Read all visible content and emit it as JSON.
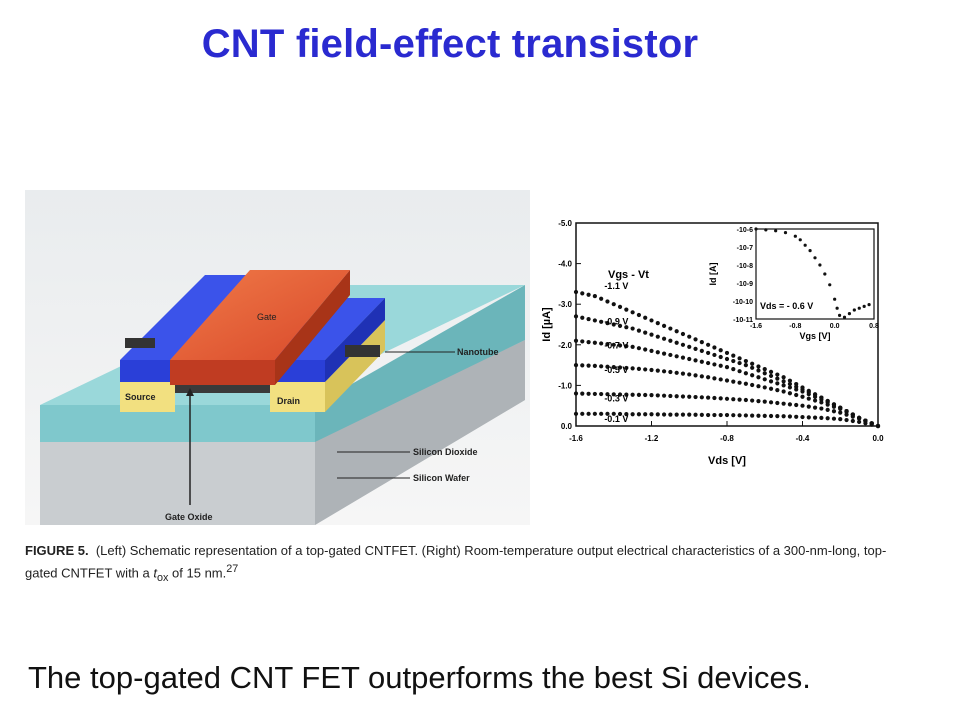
{
  "slide": {
    "title": "CNT field-effect transistor",
    "tagline": "The top-gated CNT FET outperforms the best Si devices."
  },
  "schematic": {
    "labels": {
      "gate": "Gate",
      "source": "Source",
      "drain": "Drain",
      "nanotube": "Nanotube",
      "silicon_dioxide": "Silicon Dioxide",
      "silicon_wafer": "Silicon Wafer",
      "gate_oxide": "Gate Oxide"
    },
    "colors": {
      "gate": "#e8603a",
      "electrode_blue": "#2a3fd8",
      "contact_yellow": "#f2e080",
      "oxide": "#8fd3d6",
      "wafer": "#c9cdd0"
    }
  },
  "caption": {
    "figure_label": "FIGURE 5.",
    "text_part1": "(Left) Schematic representation of a top-gated CNTFET. (Right) Room-temperature output electrical characteristics of a 300-nm-long, top-gated CNTFET with a ",
    "tox": "t",
    "tox_sub": "ox",
    "text_part2": " of 15 nm.",
    "ref": "27"
  },
  "chart_data": [
    {
      "type": "scatter",
      "title": "",
      "xlabel": "Vds [V]",
      "ylabel": "Id [µA]",
      "xlim": [
        -1.6,
        0.0
      ],
      "ylim": [
        0.0,
        -5.0
      ],
      "x_ticks": [
        "-1.6",
        "-1.2",
        "-0.8",
        "-0.4",
        "0.0"
      ],
      "y_ticks": [
        "-5.0",
        "-4.0",
        "-3.0",
        "-2.0",
        "-1.0",
        "0.0"
      ],
      "legend_title": "Vgs - Vt",
      "series": [
        {
          "name": "-1.1 V",
          "x": [
            -1.6,
            -1.5,
            -1.4,
            -1.3,
            -1.2,
            -1.1,
            -1.0,
            -0.9,
            -0.8,
            -0.7,
            -0.6,
            -0.5,
            -0.4,
            -0.3,
            -0.2,
            -0.1,
            0.0
          ],
          "y": [
            -3.3,
            -3.2,
            -3.0,
            -2.8,
            -2.6,
            -2.4,
            -2.2,
            -2.0,
            -1.8,
            -1.6,
            -1.4,
            -1.2,
            -0.95,
            -0.7,
            -0.45,
            -0.2,
            0.0
          ]
        },
        {
          "name": "-0.9 V",
          "x": [
            -1.6,
            -1.5,
            -1.4,
            -1.3,
            -1.2,
            -1.1,
            -1.0,
            -0.9,
            -0.8,
            -0.7,
            -0.6,
            -0.5,
            -0.4,
            -0.3,
            -0.2,
            -0.1,
            0.0
          ],
          "y": [
            -2.7,
            -2.6,
            -2.5,
            -2.4,
            -2.25,
            -2.1,
            -1.95,
            -1.8,
            -1.65,
            -1.5,
            -1.3,
            -1.1,
            -0.9,
            -0.7,
            -0.45,
            -0.2,
            0.0
          ]
        },
        {
          "name": "-0.7 V",
          "x": [
            -1.6,
            -1.5,
            -1.4,
            -1.3,
            -1.2,
            -1.1,
            -1.0,
            -0.9,
            -0.8,
            -0.7,
            -0.6,
            -0.5,
            -0.4,
            -0.3,
            -0.2,
            -0.1,
            0.0
          ],
          "y": [
            -2.1,
            -2.05,
            -2.0,
            -1.95,
            -1.85,
            -1.75,
            -1.65,
            -1.55,
            -1.45,
            -1.3,
            -1.15,
            -1.0,
            -0.85,
            -0.65,
            -0.45,
            -0.2,
            0.0
          ]
        },
        {
          "name": "-0.5 V",
          "x": [
            -1.6,
            -1.5,
            -1.4,
            -1.3,
            -1.2,
            -1.1,
            -1.0,
            -0.9,
            -0.8,
            -0.7,
            -0.6,
            -0.5,
            -0.4,
            -0.3,
            -0.2,
            -0.1,
            0.0
          ],
          "y": [
            -1.5,
            -1.48,
            -1.45,
            -1.42,
            -1.38,
            -1.33,
            -1.27,
            -1.2,
            -1.12,
            -1.04,
            -0.95,
            -0.85,
            -0.72,
            -0.58,
            -0.42,
            -0.2,
            0.0
          ]
        },
        {
          "name": "-0.3 V",
          "x": [
            -1.6,
            -1.5,
            -1.4,
            -1.3,
            -1.2,
            -1.1,
            -1.0,
            -0.9,
            -0.8,
            -0.7,
            -0.6,
            -0.5,
            -0.4,
            -0.3,
            -0.2,
            -0.1,
            0.0
          ],
          "y": [
            -0.8,
            -0.79,
            -0.78,
            -0.77,
            -0.76,
            -0.74,
            -0.72,
            -0.7,
            -0.67,
            -0.64,
            -0.6,
            -0.55,
            -0.5,
            -0.43,
            -0.33,
            -0.18,
            0.0
          ]
        },
        {
          "name": "-0.1 V",
          "x": [
            -1.6,
            -1.5,
            -1.4,
            -1.3,
            -1.2,
            -1.1,
            -1.0,
            -0.9,
            -0.8,
            -0.7,
            -0.6,
            -0.5,
            -0.4,
            -0.3,
            -0.2,
            -0.1,
            0.0
          ],
          "y": [
            -0.3,
            -0.3,
            -0.3,
            -0.29,
            -0.29,
            -0.28,
            -0.28,
            -0.27,
            -0.27,
            -0.26,
            -0.25,
            -0.24,
            -0.22,
            -0.2,
            -0.17,
            -0.1,
            0.0
          ]
        }
      ]
    },
    {
      "type": "scatter",
      "title": "",
      "xlabel": "Vgs [V]",
      "ylabel": "Id [A]",
      "xlim": [
        -1.6,
        0.8
      ],
      "ylim_exponents": [
        -11,
        -6
      ],
      "x_ticks": [
        "-1.6",
        "-0.8",
        "0.0",
        "0.8"
      ],
      "y_ticks": [
        "-10-6",
        "-10-7",
        "-10-8",
        "-10-9",
        "-10-10",
        "-10-11"
      ],
      "annotation": "Vds = - 0.6 V",
      "series": [
        {
          "x": [
            -1.6,
            -1.4,
            -1.2,
            -1.0,
            -0.8,
            -0.7,
            -0.6,
            -0.5,
            -0.4,
            -0.3,
            -0.2,
            -0.1,
            0.0,
            0.05,
            0.1,
            0.2,
            0.3,
            0.4,
            0.5,
            0.6,
            0.7
          ],
          "log_abs_y": [
            -6.0,
            -6.05,
            -6.1,
            -6.2,
            -6.4,
            -6.6,
            -6.9,
            -7.2,
            -7.6,
            -8.0,
            -8.5,
            -9.1,
            -9.9,
            -10.4,
            -10.8,
            -10.9,
            -10.7,
            -10.5,
            -10.4,
            -10.3,
            -10.2
          ]
        }
      ]
    }
  ]
}
